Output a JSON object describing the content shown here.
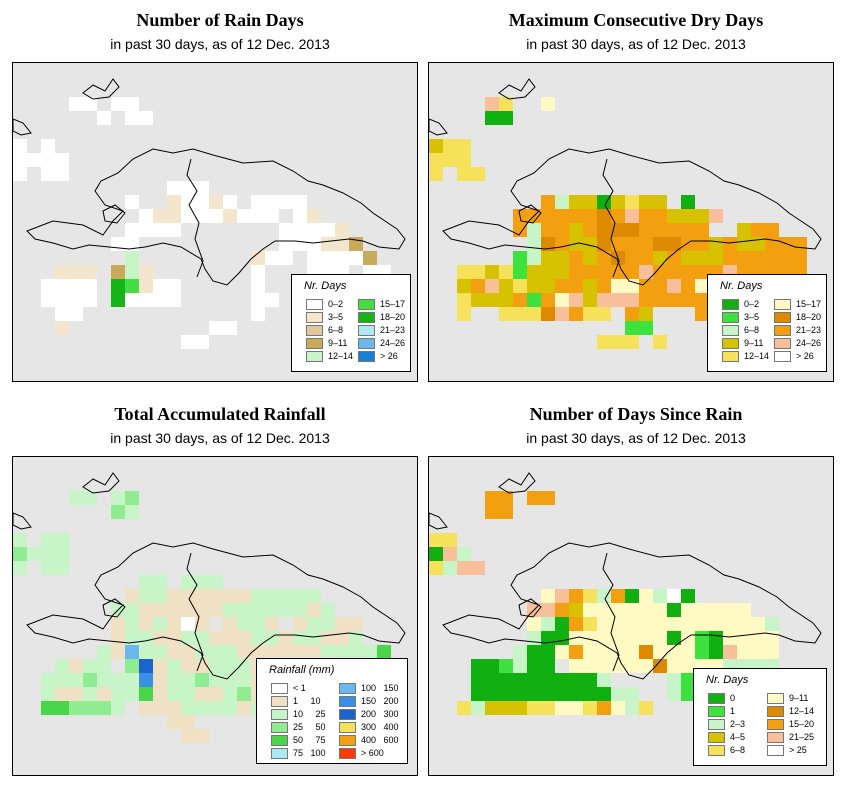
{
  "panels": [
    {
      "title": "Number of Rain Days",
      "subtitle": "in past 30 days, as of  12 Dec. 2013",
      "legend": {
        "title": "Nr. Days",
        "items": [
          {
            "label": "0–2",
            "color": "#ffffff"
          },
          {
            "label": "3–5",
            "color": "#f3e6cc"
          },
          {
            "label": "6–8",
            "color": "#e0c89a"
          },
          {
            "label": "9–11",
            "color": "#c9a95a"
          },
          {
            "label": "12–14",
            "color": "#c8f5c8"
          },
          {
            "label": "15–17",
            "color": "#44dd44"
          },
          {
            "label": "18–20",
            "color": "#17b417"
          },
          {
            "label": "21–23",
            "color": "#aee8f5"
          },
          {
            "label": "24–26",
            "color": "#6ab8ee"
          },
          {
            "label": "> 26",
            "color": "#1a7fd8"
          }
        ]
      }
    },
    {
      "title": "Maximum Consecutive Dry Days",
      "subtitle": "in past 30 days, as of  12 Dec. 2013",
      "legend": {
        "title": "Nr. Days",
        "items": [
          {
            "label": "0–2",
            "color": "#10b010"
          },
          {
            "label": "3–5",
            "color": "#3ee23e"
          },
          {
            "label": "6–8",
            "color": "#c8f5c8"
          },
          {
            "label": "9–11",
            "color": "#d6c200"
          },
          {
            "label": "12–14",
            "color": "#f5e25a"
          },
          {
            "label": "15–17",
            "color": "#fffac4"
          },
          {
            "label": "18–20",
            "color": "#de8a00"
          },
          {
            "label": "21–23",
            "color": "#f2a010"
          },
          {
            "label": "24–26",
            "color": "#f8c09a"
          },
          {
            "label": "> 26",
            "color": "#ffffff"
          }
        ]
      }
    },
    {
      "title": "Total Accumulated Rainfall",
      "subtitle": "in past 30 days, as of  12 Dec. 2013",
      "legend": {
        "title": "Rainfall (mm)",
        "items": [
          {
            "label": "< 1",
            "color": "#ffffff"
          },
          {
            "label": "1     10",
            "color": "#f0e0c4"
          },
          {
            "label": "10     25",
            "color": "#c8f5c8"
          },
          {
            "label": "25     50",
            "color": "#90ec90"
          },
          {
            "label": "50     75",
            "color": "#4ad64a"
          },
          {
            "label": "75   100",
            "color": "#aee8f5"
          },
          {
            "label": "100   150",
            "color": "#6ab8ee"
          },
          {
            "label": "150   200",
            "color": "#3a90e6"
          },
          {
            "label": "200   300",
            "color": "#1a64d0"
          },
          {
            "label": "300   400",
            "color": "#f5e25a"
          },
          {
            "label": "400   600",
            "color": "#f2a010"
          },
          {
            "label": "> 600",
            "color": "#ff3a00"
          }
        ]
      }
    },
    {
      "title": "Number of Days Since Rain",
      "subtitle": "in past 30 days, as of  12 Dec. 2013",
      "legend": {
        "title": "Nr. Days",
        "items": [
          {
            "label": "0",
            "color": "#10b010"
          },
          {
            "label": "1",
            "color": "#3ee23e"
          },
          {
            "label": "2–3",
            "color": "#c8f5c8"
          },
          {
            "label": "4–5",
            "color": "#d6c200"
          },
          {
            "label": "6–8",
            "color": "#f5e25a"
          },
          {
            "label": "9–11",
            "color": "#fffac4"
          },
          {
            "label": "12–14",
            "color": "#de8a00"
          },
          {
            "label": "15–20",
            "color": "#f2a010"
          },
          {
            "label": "21–25",
            "color": "#f8c09a"
          },
          {
            "label": "> 25",
            "color": "#ffffff"
          }
        ]
      }
    }
  ],
  "grids": [
    [
      "..........................",
      "....AA.AA....................",
      "......A.AA.................",
      "...........................",
      "A.A........................",
      "AAAA.........................",
      "A.AA.........................",
      "...........AAA...............",
      "........A..BAABA.AAAA.......",
      ".........ABBAAABAAA.AB.......",
      "........AAAA.......AAAAB.....",
      ".......AA..........AAABBD...",
      "........E........BAA.AAAAD..",
      "...BBB.DEB.......A...AAA.AA..",
      "..AAAA.GFBAA.....A.......AA..",
      "..AAAA.GAAAA.....AA.....AAAA.",
      "...AA............A...AAA.....",
      "...B..........AA.............",
      "............AA...............",
      "............................."
    ],
    [
      "..............................",
      "....IE..F....................",
      "....AA.......................",
      "..............................",
      "DEE...........................",
      "EEE..........................",
      "E.EE.........................",
      ".......................,.....",
      "........HCDDADEDD.A..........",
      "......HHHHHHGHIHHDDDI........",
      "......HCHHDHGGGHHHHH..DHH....",
      ".......CGHDDGHHHGGHHDHDDHHH..",
      "......BCDDHDHGHHDHDDDHHHHHH..",
      "..EEDEBDDDHHHHHIHHHHHIHHHHH..",
      "..DHIDEDDHHDHFFHHIHFHHHHHHH..",
      "..EDDDHBHFIDIIIHHHHHHHHHHIH..",
      "..E..EEEGIHEE.HD...HH........",
      "..............BB..............",
      "............EEE.E............",
      ".............................."
    ],
    [
      "..............................",
      "....CC.CD.....................",
      ".......DC.....................",
      "..............................",
      "C.CC..........................",
      "DCCC..........................",
      "C.CC..........................",
      ".........CC.CCC...............",
      "........BCCBBBBBBCCCCC........",
      ".......CCBBBBBBCCCCCCBC.......",
      ".......BCBCBAB.BCCB.BCCBB......",
      ".......BCCBBCCBBBCCBCCBBC......",
      "......CBGCCBBCCCBBBBBBCCCCE....",
      "...CBCC.DIBCBBCCCBBBCCBCCCD...",
      "..CCCDCCCHBCCDCCCBCCCBBBBBD...",
      "..CBBCBCCEBCCBBCDBCCBBBBBBC...",
      "..EEDDDC.BBBCCCCBCCCCCCCC.....",
      "...........BB..................",
      "............BB.................",
      ".............................."
    ],
    [
      "..............................",
      "....HH.HH.....................",
      "....HH........................",
      "..............................",
      "EE............................",
      "AIC...........................",
      "ECII..........................",
      "..............................",
      "........FIHECHAFCJA...........",
      ".......IIHDFFFFFFAFFFFF.......",
      ".......FCAHEFFFFFFFFFFFFC.....",
      ".......CAAFFFFFFFAFBAFFFF.....",
      "......CAAFHFFFFGFFFBAIFFF.....",
      "...AABCAA.FFFFFFGFFFFCCCC.....",
      "...AAAAAAAAAC....CBFFFCCCC....",
      "...AAAAAAAAAACC..CBCCCCCCB....",
      "..ECDDDEEFFEHFCE..............",
      "..............................",
      "..............................",
      ".............................."
    ]
  ]
}
